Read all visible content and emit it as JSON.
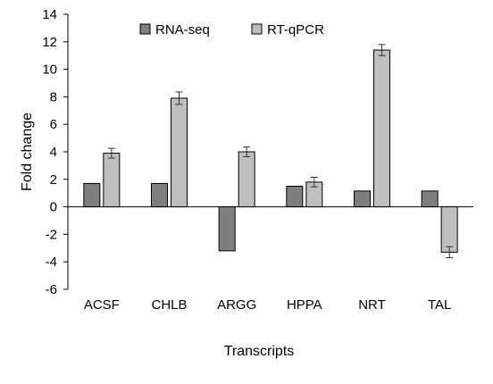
{
  "chart_data": {
    "type": "bar",
    "categories": [
      "ACSF",
      "CHLB",
      "ARGG",
      "HPPA",
      "NRT",
      "TAL"
    ],
    "series": [
      {
        "name": "RNA-seq",
        "values": [
          1.7,
          1.7,
          -3.2,
          1.5,
          1.15,
          1.15
        ],
        "color": "#7f7f7f"
      },
      {
        "name": "RT-qPCR",
        "values": [
          3.9,
          7.9,
          4.0,
          1.8,
          11.4,
          -3.3
        ],
        "errors": [
          0.35,
          0.45,
          0.35,
          0.35,
          0.4,
          0.4
        ],
        "color": "#bfbfbf"
      }
    ],
    "xlabel": "Transcripts",
    "ylabel": "Fold change",
    "ylim": [
      -6,
      14
    ],
    "yticks": [
      "14",
      "12",
      "10",
      "8",
      "6",
      "4",
      "2",
      "0",
      "-2",
      "-4",
      "-6"
    ],
    "grid": false,
    "legend_position": "top-center"
  }
}
